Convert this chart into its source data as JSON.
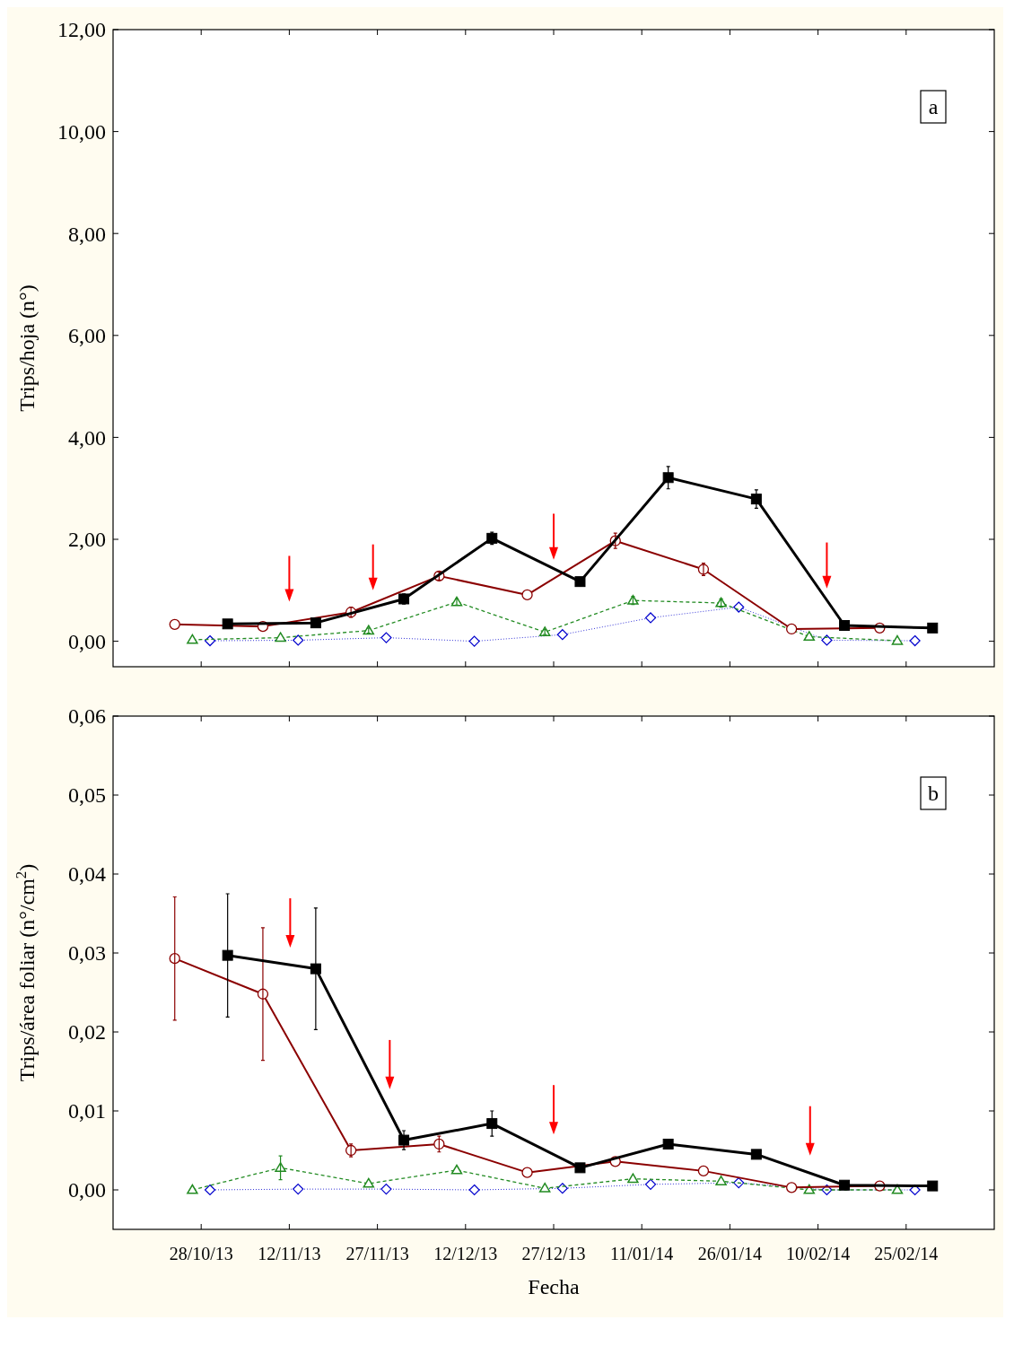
{
  "chart_data": [
    {
      "type": "line",
      "ylabel": "Trips/hoja (n°)",
      "annotations": [
        "a"
      ],
      "xlim": [
        "2013-10-13",
        "2014-03-12"
      ],
      "ylim": [
        -0.5,
        12
      ],
      "xticks": [
        {
          "value": "2013-10-28",
          "label": null
        },
        {
          "value": "2013-11-12",
          "label": null
        },
        {
          "value": "2013-11-27",
          "label": null
        },
        {
          "value": "2013-12-12",
          "label": null
        },
        {
          "value": "2013-12-27",
          "label": null
        },
        {
          "value": "2014-01-11",
          "label": null
        },
        {
          "value": "2014-01-26",
          "label": null
        },
        {
          "value": "2014-02-10",
          "label": null
        },
        {
          "value": "2014-02-25",
          "label": null
        }
      ],
      "yticks": [
        {
          "value": 0,
          "label": "0,00"
        },
        {
          "value": 2,
          "label": "2,00"
        },
        {
          "value": 4,
          "label": "4,00"
        },
        {
          "value": 6,
          "label": "6,00"
        },
        {
          "value": 8,
          "label": "8,00"
        },
        {
          "value": 10,
          "label": "10,00"
        },
        {
          "value": 12,
          "label": "12,00"
        }
      ],
      "tick_labels": "y",
      "grid": false,
      "series": [
        {
          "color": "#0000cd",
          "marker": "diamond",
          "line_style": "dotted",
          "x": [
            "2013-10-29T12:00",
            "2013-11-13T12:00",
            "2013-11-28T12:00",
            "2013-12-13T12:00",
            "2013-12-28T12:00",
            "2014-01-12T12:00",
            "2014-01-27T12:00",
            "2014-02-11T12:00",
            "2014-02-26T12:00"
          ],
          "values": [
            0.01,
            0.02,
            0.07,
            0,
            0.13,
            0.46,
            0.67,
            0.02,
            0.01
          ]
        },
        {
          "color": "#228b22",
          "marker": "triangle",
          "line_style": "dashed",
          "x": [
            "2013-10-26T12:00",
            "2013-11-10T12:00",
            "2013-11-25T12:00",
            "2013-12-10T12:00",
            "2013-12-25T12:00",
            "2014-01-09T12:00",
            "2014-01-24T12:00",
            "2014-02-08T12:00",
            "2014-02-23T12:00"
          ],
          "values": [
            0.03,
            0.07,
            0.21,
            0.77,
            0.18,
            0.8,
            0.75,
            0.09,
            0.01
          ],
          "errors": [
            null,
            null,
            0.05,
            0.06,
            0.05,
            0.08,
            0.08,
            null,
            null
          ]
        },
        {
          "color": "#8b0000",
          "marker": "circle",
          "line_style": "solid",
          "x": [
            "2013-10-23T12:00",
            "2013-11-07T12:00",
            "2013-11-22T12:00",
            "2013-12-07T12:00",
            "2013-12-22T12:00",
            "2014-01-06T12:00",
            "2014-01-21T12:00",
            "2014-02-05T12:00",
            "2014-02-20T12:00"
          ],
          "values": [
            0.33,
            0.29,
            0.57,
            1.28,
            0.91,
            1.97,
            1.41,
            0.24,
            0.26
          ],
          "errors": [
            null,
            null,
            0.1,
            0.08,
            null,
            0.15,
            0.12,
            null,
            null
          ]
        },
        {
          "color": "#000000",
          "marker": "square",
          "line_style": "solid",
          "x": [
            "2013-11-01T12:00",
            "2013-11-16T12:00",
            "2013-12-01T12:00",
            "2013-12-16T12:00",
            "2013-12-31T12:00",
            "2014-01-15T12:00",
            "2014-01-30T12:00",
            "2014-02-14T12:00",
            "2014-03-01T12:00"
          ],
          "values": [
            0.34,
            0.36,
            0.83,
            2.02,
            1.17,
            3.21,
            2.79,
            0.31,
            0.26
          ],
          "errors": [
            null,
            null,
            0.1,
            0.12,
            0.08,
            0.22,
            0.18,
            null,
            null
          ]
        }
      ]
    },
    {
      "type": "line",
      "xlabel": "Fecha",
      "ylabel": "Trips/área foliar (n°/cm$^{2}$)",
      "annotations": [
        "b"
      ],
      "xlim": [
        "2013-10-13",
        "2014-03-12"
      ],
      "ylim": [
        -0.005,
        0.06
      ],
      "xticks": [
        {
          "value": "2013-10-28",
          "label": "28/10/13"
        },
        {
          "value": "2013-11-12",
          "label": "12/11/13"
        },
        {
          "value": "2013-11-27",
          "label": "27/11/13"
        },
        {
          "value": "2013-12-12",
          "label": "12/12/13"
        },
        {
          "value": "2013-12-27",
          "label": "27/12/13"
        },
        {
          "value": "2014-01-11",
          "label": "11/01/14"
        },
        {
          "value": "2014-01-26",
          "label": "26/01/14"
        },
        {
          "value": "2014-02-10",
          "label": "10/02/14"
        },
        {
          "value": "2014-02-25",
          "label": "25/02/14"
        }
      ],
      "yticks": [
        {
          "value": 0,
          "label": "0,00"
        },
        {
          "value": 0.01,
          "label": "0,01"
        },
        {
          "value": 0.02,
          "label": "0,02"
        },
        {
          "value": 0.03,
          "label": "0,03"
        },
        {
          "value": 0.04,
          "label": "0,04"
        },
        {
          "value": 0.05,
          "label": "0,05"
        },
        {
          "value": 0.06,
          "label": "0,06"
        }
      ],
      "grid": false,
      "series": [
        {
          "color": "#0000cd",
          "marker": "diamond",
          "line_style": "dotted",
          "x": [
            "2013-10-29T12:00",
            "2013-11-13T12:00",
            "2013-11-28T12:00",
            "2013-12-13T12:00",
            "2013-12-28T12:00",
            "2014-01-12T12:00",
            "2014-01-27T12:00",
            "2014-02-11T12:00",
            "2014-02-26T12:00"
          ],
          "values": [
            0,
            0.0001,
            0.0001,
            0,
            0.0002,
            0.0007,
            0.0009,
            0,
            0
          ]
        },
        {
          "color": "#228b22",
          "marker": "triangle",
          "line_style": "dashed",
          "x": [
            "2013-10-26T12:00",
            "2013-11-10T12:00",
            "2013-11-25T12:00",
            "2013-12-10T12:00",
            "2013-12-25T12:00",
            "2014-01-09T12:00",
            "2014-01-24T12:00",
            "2014-02-08T12:00",
            "2014-02-23T12:00"
          ],
          "values": [
            0,
            0.0028,
            0.0008,
            0.0025,
            0.0002,
            0.0014,
            0.0011,
            0,
            0
          ],
          "errors": [
            null,
            0.0015,
            null,
            null,
            null,
            null,
            null,
            null,
            null
          ]
        },
        {
          "color": "#8b0000",
          "marker": "circle",
          "line_style": "solid",
          "x": [
            "2013-10-23T12:00",
            "2013-11-07T12:00",
            "2013-11-22T12:00",
            "2013-12-07T12:00",
            "2013-12-22T12:00",
            "2014-01-06T12:00",
            "2014-01-21T12:00",
            "2014-02-05T12:00",
            "2014-02-20T12:00"
          ],
          "values": [
            0.0293,
            0.0248,
            0.005,
            0.0058,
            0.0022,
            0.0036,
            0.0024,
            0.0003,
            0.0005
          ],
          "errors": [
            0.0078,
            0.0084,
            0.0008,
            0.001,
            null,
            null,
            null,
            null,
            null
          ]
        },
        {
          "color": "#000000",
          "marker": "square",
          "line_style": "solid",
          "x": [
            "2013-11-01T12:00",
            "2013-11-16T12:00",
            "2013-12-01T12:00",
            "2013-12-16T12:00",
            "2013-12-31T12:00",
            "2014-01-15T12:00",
            "2014-01-30T12:00",
            "2014-02-14T12:00",
            "2014-03-01T12:00"
          ],
          "values": [
            0.0297,
            0.028,
            0.0063,
            0.0084,
            0.0028,
            0.0058,
            0.0045,
            0.0006,
            0.0005
          ],
          "errors": [
            0.0078,
            0.0077,
            0.0012,
            0.0016,
            null,
            null,
            null,
            null,
            null
          ]
        }
      ]
    }
  ]
}
